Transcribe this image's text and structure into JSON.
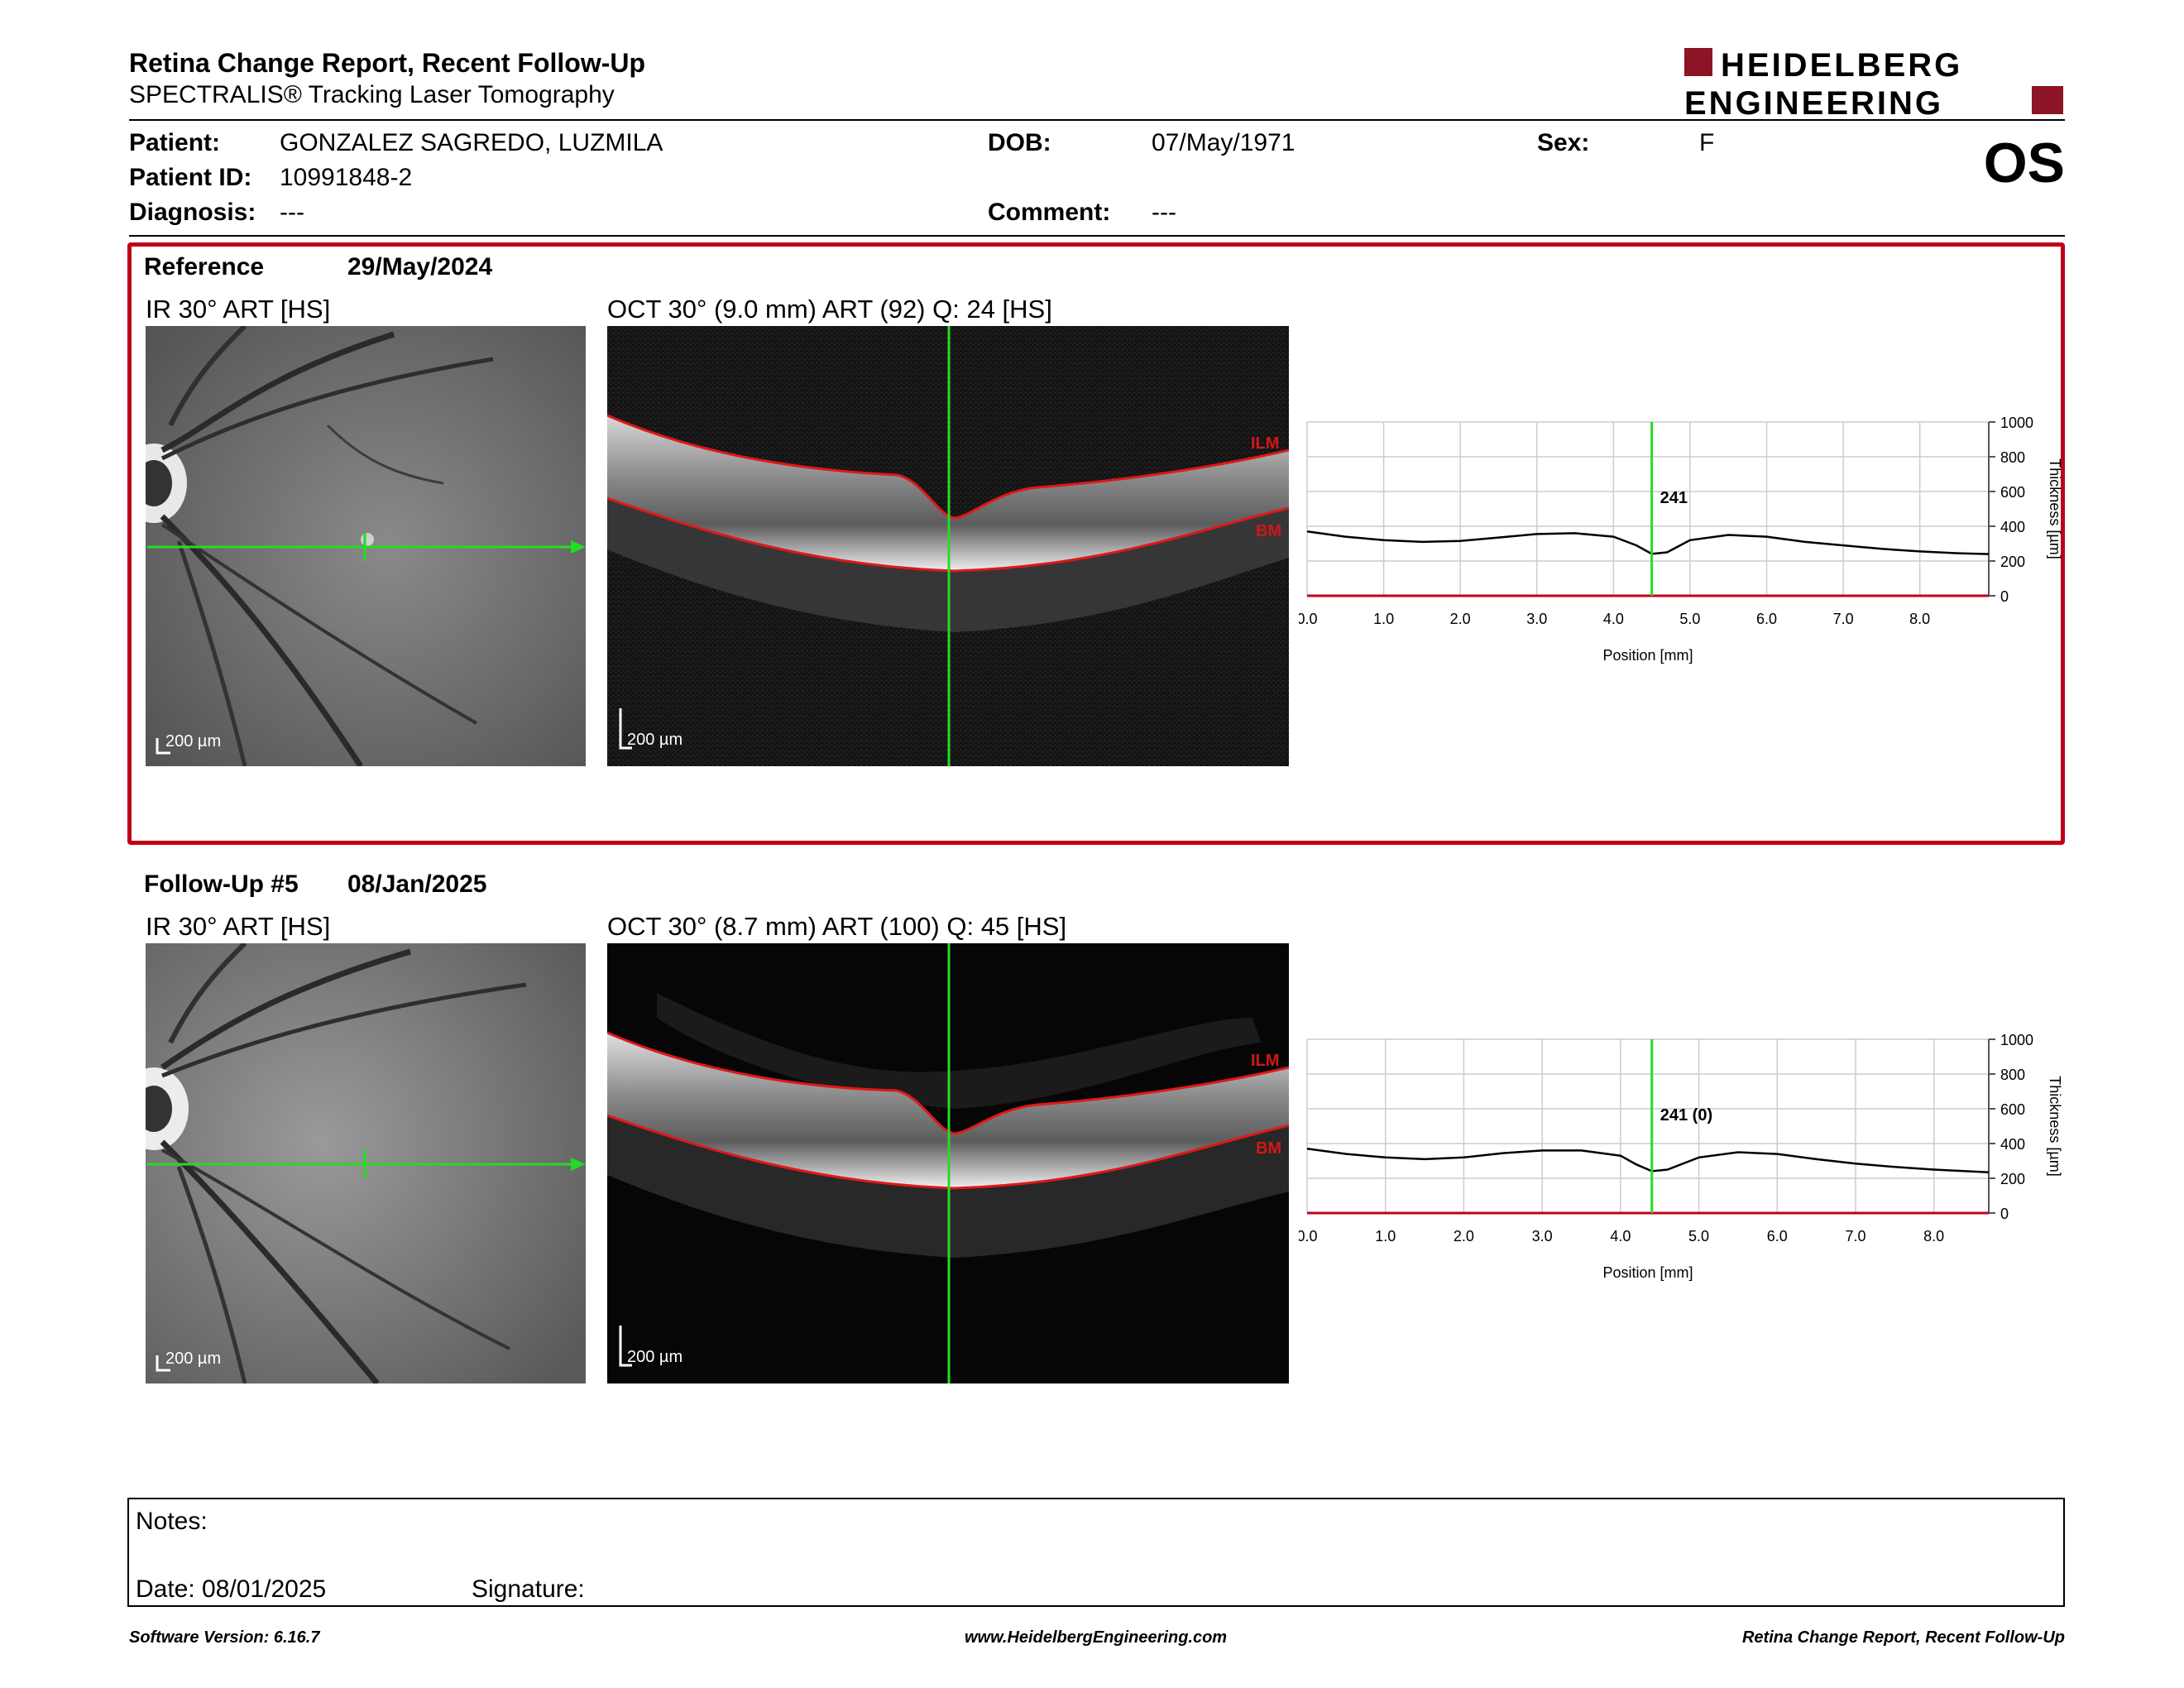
{
  "header": {
    "title": "Retina Change Report, Recent Follow-Up",
    "subtitle": "SPECTRALIS® Tracking Laser Tomography",
    "logo_line1": "HEIDELBERG",
    "logo_line2": "ENGINEERING",
    "eye": "OS"
  },
  "patient": {
    "patient_label": "Patient:",
    "patient_value": "GONZALEZ SAGREDO, LUZMILA",
    "id_label": "Patient ID:",
    "id_value": "10991848-2",
    "diagnosis_label": "Diagnosis:",
    "diagnosis_value": "---",
    "dob_label": "DOB:",
    "dob_value": "07/May/1971",
    "comment_label": "Comment:",
    "comment_value": "---",
    "sex_label": "Sex:",
    "sex_value": "F"
  },
  "reference": {
    "label": "Reference",
    "date": "29/May/2024",
    "ir_caption": "IR 30° ART [HS]",
    "oct_caption": "OCT 30° (9.0 mm) ART (92) Q: 24 [HS]",
    "scale": "200 µm",
    "ilm": "ILM",
    "bm": "BM",
    "marker_label": "241"
  },
  "followup": {
    "label": "Follow-Up #5",
    "date": "08/Jan/2025",
    "ir_caption": "IR 30° ART [HS]",
    "oct_caption": "OCT 30° (8.7 mm) ART (100) Q: 45 [HS]",
    "scale": "200 µm",
    "ilm": "ILM",
    "bm": "BM",
    "marker_label": "241 (0)"
  },
  "chart_data": [
    {
      "type": "line",
      "xlabel": "Position [mm]",
      "ylabel": "Thickness [µm]",
      "xlim": [
        0,
        8.9
      ],
      "ylim": [
        0,
        1000
      ],
      "x_ticks": [
        "0.0",
        "1.0",
        "2.0",
        "3.0",
        "4.0",
        "5.0",
        "6.0",
        "7.0",
        "8.0"
      ],
      "y_ticks": [
        "0",
        "200",
        "400",
        "600",
        "800",
        "1000"
      ],
      "marker_x": 4.5,
      "marker_label": "241",
      "grid": true,
      "x": [
        0,
        0.5,
        1,
        1.5,
        2,
        2.5,
        3,
        3.5,
        4,
        4.3,
        4.5,
        4.7,
        5,
        5.5,
        6,
        6.5,
        7,
        7.5,
        8,
        8.5,
        8.9
      ],
      "y": [
        370,
        340,
        320,
        310,
        315,
        335,
        355,
        360,
        340,
        290,
        241,
        250,
        320,
        350,
        340,
        310,
        290,
        270,
        255,
        245,
        240
      ]
    },
    {
      "type": "line",
      "xlabel": "Position [mm]",
      "ylabel": "Thickness [µm]",
      "xlim": [
        0,
        8.7
      ],
      "ylim": [
        0,
        1000
      ],
      "x_ticks": [
        "0.0",
        "1.0",
        "2.0",
        "3.0",
        "4.0",
        "5.0",
        "6.0",
        "7.0",
        "8.0"
      ],
      "y_ticks": [
        "0",
        "200",
        "400",
        "600",
        "800",
        "1000"
      ],
      "marker_x": 4.4,
      "marker_label": "241 (0)",
      "grid": true,
      "x": [
        0,
        0.5,
        1,
        1.5,
        2,
        2.5,
        3,
        3.5,
        4,
        4.2,
        4.4,
        4.6,
        5,
        5.5,
        6,
        6.5,
        7,
        7.5,
        8,
        8.7
      ],
      "y": [
        370,
        340,
        320,
        310,
        320,
        345,
        360,
        360,
        330,
        280,
        241,
        250,
        320,
        350,
        340,
        310,
        285,
        265,
        250,
        235
      ]
    }
  ],
  "notes": {
    "notes_label": "Notes:",
    "date_label": "Date: 08/01/2025",
    "signature_label": "Signature:"
  },
  "footer": {
    "software": "Software Version: 6.16.7",
    "website": "www.HeidelbergEngineering.com",
    "report_name": "Retina Change Report, Recent Follow-Up"
  }
}
